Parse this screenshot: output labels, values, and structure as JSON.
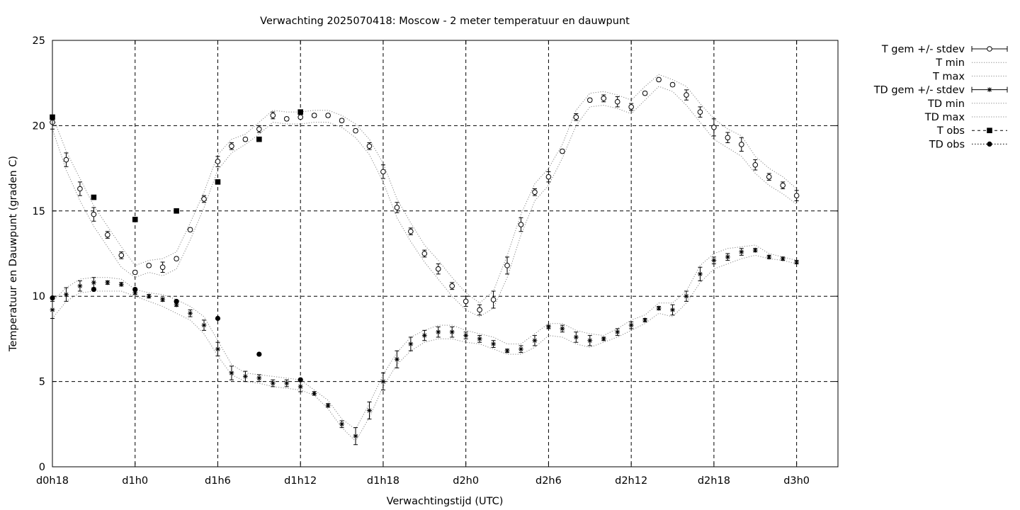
{
  "chart_data": {
    "type": "line",
    "title": "Verwachting 2025070418: Moscow - 2 meter temperatuur en dauwpunt",
    "xlabel": "Verwachtingstijd (UTC)",
    "ylabel": "Temperatuur en Dauwpunt (graden C)",
    "xlim": [
      18,
      75
    ],
    "ylim": [
      0,
      25
    ],
    "x_ticks": [
      {
        "x": 18,
        "label": "d0h18"
      },
      {
        "x": 24,
        "label": "d1h0"
      },
      {
        "x": 30,
        "label": "d1h6"
      },
      {
        "x": 36,
        "label": "d1h12"
      },
      {
        "x": 42,
        "label": "d1h18"
      },
      {
        "x": 48,
        "label": "d2h0"
      },
      {
        "x": 54,
        "label": "d2h6"
      },
      {
        "x": 60,
        "label": "d2h12"
      },
      {
        "x": 66,
        "label": "d2h18"
      },
      {
        "x": 72,
        "label": "d3h0"
      }
    ],
    "y_ticks": [
      0,
      5,
      10,
      15,
      20,
      25
    ],
    "grid": true,
    "legend_position": "outside-right-top",
    "legend": [
      {
        "label": "T gem +/- stdev",
        "key": "t_mean"
      },
      {
        "label": "T min",
        "key": "t_min"
      },
      {
        "label": "T max",
        "key": "t_max"
      },
      {
        "label": "TD gem +/- stdev",
        "key": "td_mean"
      },
      {
        "label": "TD min",
        "key": "td_min"
      },
      {
        "label": "TD max",
        "key": "td_max"
      },
      {
        "label": "T obs",
        "key": "t_obs"
      },
      {
        "label": "TD obs",
        "key": "td_obs"
      }
    ],
    "x": [
      18,
      19,
      20,
      21,
      22,
      23,
      24,
      25,
      26,
      27,
      28,
      29,
      30,
      31,
      32,
      33,
      34,
      35,
      36,
      37,
      38,
      39,
      40,
      41,
      42,
      43,
      44,
      45,
      46,
      47,
      48,
      49,
      50,
      51,
      52,
      53,
      54,
      55,
      56,
      57,
      58,
      59,
      60,
      61,
      62,
      63,
      64,
      65,
      66,
      67,
      68,
      69,
      70,
      71,
      72
    ],
    "series": [
      {
        "name": "T gem +/- stdev",
        "marker": "open-circle",
        "values": [
          20.2,
          18.0,
          16.3,
          14.8,
          13.6,
          12.4,
          11.4,
          11.8,
          11.7,
          12.2,
          13.9,
          15.7,
          17.9,
          18.8,
          19.2,
          19.8,
          20.6,
          20.4,
          20.5,
          20.6,
          20.6,
          20.3,
          19.7,
          18.8,
          17.3,
          15.2,
          13.8,
          12.5,
          11.6,
          10.6,
          9.7,
          9.2,
          9.8,
          11.8,
          14.2,
          16.1,
          17.0,
          18.5,
          20.5,
          21.5,
          21.6,
          21.4,
          21.1,
          21.9,
          22.7,
          22.4,
          21.8,
          20.8,
          19.9,
          19.3,
          18.9,
          17.7,
          17.0,
          16.5,
          15.9
        ],
        "stdev": [
          0.4,
          0.4,
          0.4,
          0.4,
          0.2,
          0.2,
          0.1,
          0.1,
          0.3,
          0.1,
          0.1,
          0.2,
          0.3,
          0.2,
          0.1,
          0.2,
          0.2,
          0.1,
          0.1,
          0.1,
          0.1,
          0.1,
          0.1,
          0.2,
          0.4,
          0.3,
          0.2,
          0.2,
          0.3,
          0.2,
          0.3,
          0.3,
          0.5,
          0.5,
          0.4,
          0.2,
          0.3,
          0.1,
          0.2,
          0.1,
          0.2,
          0.3,
          0.2,
          0.1,
          0.1,
          0.1,
          0.3,
          0.3,
          0.5,
          0.3,
          0.4,
          0.3,
          0.2,
          0.2,
          0.3
        ]
      },
      {
        "name": "T min",
        "line": "dotted",
        "values": [
          19.8,
          17.4,
          15.6,
          14.1,
          12.9,
          11.7,
          11.1,
          11.4,
          11.2,
          11.6,
          13.3,
          15.2,
          17.4,
          18.4,
          18.9,
          19.5,
          20.2,
          20.1,
          20.1,
          20.2,
          20.2,
          19.9,
          19.3,
          18.3,
          16.7,
          14.6,
          13.2,
          12.0,
          11.0,
          10.0,
          9.2,
          8.8,
          9.3,
          11.1,
          13.6,
          15.6,
          16.5,
          18.1,
          20.0,
          21.1,
          21.2,
          21.0,
          20.7,
          21.5,
          22.3,
          22.0,
          21.2,
          20.2,
          19.2,
          18.7,
          18.2,
          17.2,
          16.5,
          16.0,
          15.4
        ]
      },
      {
        "name": "T max",
        "line": "dotted",
        "values": [
          20.6,
          18.5,
          16.9,
          15.3,
          14.1,
          12.9,
          11.8,
          12.1,
          12.2,
          12.6,
          14.3,
          16.1,
          18.3,
          19.2,
          19.5,
          20.2,
          20.9,
          20.8,
          20.8,
          20.9,
          20.9,
          20.6,
          20.1,
          19.2,
          17.8,
          15.7,
          14.3,
          13.0,
          12.1,
          11.1,
          10.2,
          9.6,
          10.3,
          12.4,
          14.8,
          16.6,
          17.5,
          18.9,
          20.9,
          21.9,
          22.0,
          21.8,
          21.5,
          22.3,
          23.0,
          22.7,
          22.3,
          21.3,
          20.4,
          19.8,
          19.4,
          18.2,
          17.5,
          17.0,
          16.3
        ]
      },
      {
        "name": "TD gem +/- stdev",
        "marker": "asterisk",
        "values": [
          9.2,
          10.1,
          10.6,
          10.8,
          10.8,
          10.7,
          10.2,
          10.0,
          9.8,
          9.5,
          9.0,
          8.3,
          6.9,
          5.5,
          5.3,
          5.2,
          4.9,
          4.9,
          4.7,
          4.3,
          3.6,
          2.5,
          1.8,
          3.3,
          5.0,
          6.3,
          7.2,
          7.7,
          7.9,
          7.9,
          7.7,
          7.5,
          7.2,
          6.8,
          6.9,
          7.4,
          8.2,
          8.1,
          7.6,
          7.4,
          7.5,
          7.9,
          8.3,
          8.6,
          9.3,
          9.2,
          10.0,
          11.3,
          12.1,
          12.3,
          12.6,
          12.7,
          12.3,
          12.2,
          12.0
        ],
        "stdev": [
          0.5,
          0.4,
          0.3,
          0.3,
          0.1,
          0.1,
          0.1,
          0.1,
          0.1,
          0.1,
          0.2,
          0.3,
          0.4,
          0.4,
          0.3,
          0.2,
          0.2,
          0.2,
          0.3,
          0.1,
          0.1,
          0.2,
          0.5,
          0.5,
          0.5,
          0.5,
          0.4,
          0.3,
          0.3,
          0.3,
          0.2,
          0.2,
          0.2,
          0.1,
          0.2,
          0.3,
          0.1,
          0.2,
          0.3,
          0.3,
          0.1,
          0.2,
          0.2,
          0.1,
          0.1,
          0.3,
          0.3,
          0.4,
          0.2,
          0.2,
          0.2,
          0.1,
          0.1,
          0.1,
          0.1
        ]
      },
      {
        "name": "TD min",
        "line": "dotted",
        "values": [
          8.7,
          9.7,
          10.2,
          10.3,
          10.3,
          10.3,
          10.0,
          9.7,
          9.4,
          9.0,
          8.6,
          7.8,
          6.5,
          5.4,
          5.0,
          4.9,
          4.7,
          4.6,
          4.5,
          4.2,
          3.4,
          2.3,
          1.5,
          2.9,
          4.7,
          6.0,
          6.8,
          7.3,
          7.5,
          7.5,
          7.3,
          7.2,
          6.9,
          6.6,
          6.6,
          7.0,
          7.7,
          7.6,
          7.2,
          7.0,
          7.3,
          7.6,
          8.0,
          8.4,
          9.0,
          8.8,
          9.6,
          10.8,
          11.6,
          11.9,
          12.2,
          12.4,
          12.2,
          12.1,
          11.9
        ]
      },
      {
        "name": "TD max",
        "line": "dotted",
        "values": [
          9.7,
          10.5,
          11.0,
          11.1,
          11.1,
          11.0,
          10.4,
          10.2,
          10.1,
          9.8,
          9.4,
          8.8,
          7.4,
          6.0,
          5.5,
          5.4,
          5.3,
          5.2,
          5.1,
          4.5,
          3.9,
          2.8,
          2.2,
          3.7,
          5.4,
          6.7,
          7.6,
          8.0,
          8.3,
          8.3,
          8.0,
          7.8,
          7.6,
          7.2,
          7.2,
          7.8,
          8.4,
          8.4,
          8.0,
          7.8,
          7.7,
          8.1,
          8.6,
          8.9,
          9.6,
          9.6,
          10.3,
          11.8,
          12.5,
          12.8,
          12.9,
          13.0,
          12.5,
          12.3,
          12.1
        ]
      },
      {
        "name": "T obs",
        "marker": "filled-square",
        "x": [
          18,
          21,
          24,
          27,
          30,
          33,
          36
        ],
        "values": [
          20.5,
          15.8,
          14.5,
          15.0,
          16.7,
          19.2,
          20.8
        ]
      },
      {
        "name": "TD obs",
        "marker": "filled-circle",
        "x": [
          18,
          21,
          24,
          27,
          30,
          33,
          36
        ],
        "values": [
          9.9,
          10.4,
          10.4,
          9.7,
          8.7,
          6.6,
          5.1
        ]
      }
    ]
  }
}
